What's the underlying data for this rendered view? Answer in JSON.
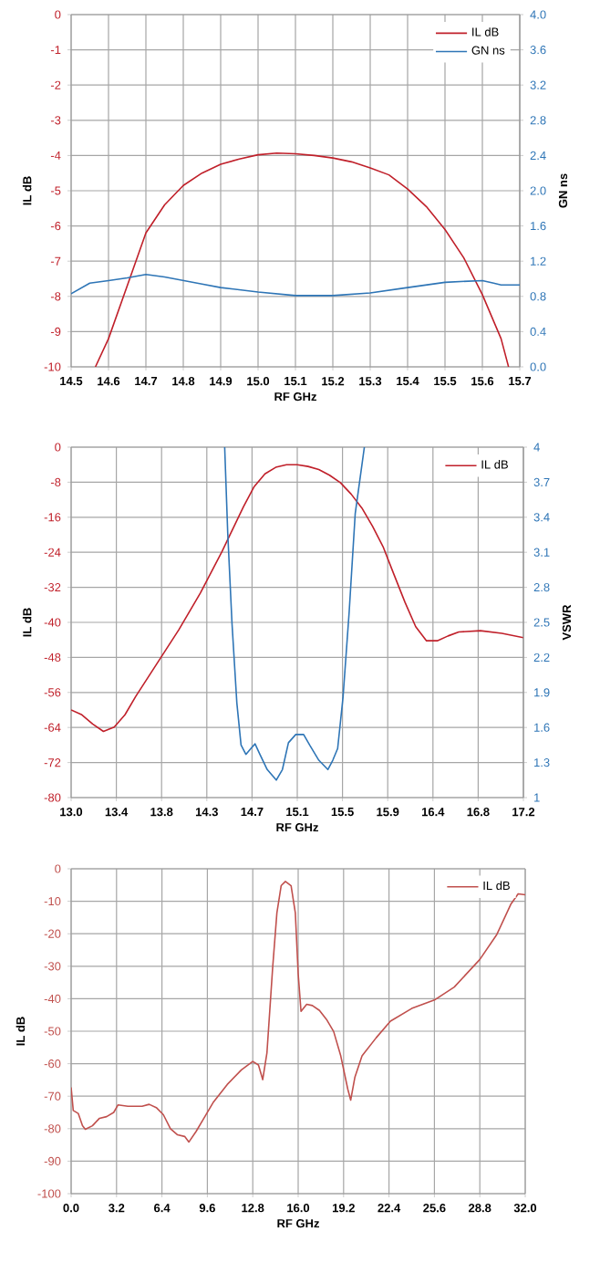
{
  "chart_data": [
    {
      "type": "line",
      "xlabel": "RF GHz",
      "ylabel": "IL dB",
      "y2label": "GN ns",
      "grid": true,
      "legend": "top right",
      "xlim": [
        14.5,
        15.7
      ],
      "xticks": [
        {
          "value": 14.5,
          "label": "14.5"
        },
        {
          "value": 14.6,
          "label": "14.6"
        },
        {
          "value": 14.7,
          "label": "14.7"
        },
        {
          "value": 14.8,
          "label": "14.8"
        },
        {
          "value": 14.9,
          "label": "14.9"
        },
        {
          "value": 15.0,
          "label": "15.0"
        },
        {
          "value": 15.1,
          "label": "15.1"
        },
        {
          "value": 15.2,
          "label": "15.2"
        },
        {
          "value": 15.3,
          "label": "15.3"
        },
        {
          "value": 15.4,
          "label": "15.4"
        },
        {
          "value": 15.5,
          "label": "15.5"
        },
        {
          "value": 15.6,
          "label": "15.6"
        },
        {
          "value": 15.7,
          "label": "15.7"
        }
      ],
      "ylim": [
        -10,
        0
      ],
      "yticks": [
        -10,
        -9,
        -8,
        -7,
        -6,
        -5,
        -4,
        -3,
        -2,
        -1,
        0
      ],
      "y2lim": [
        0,
        4
      ],
      "y2ticks": [
        {
          "value": 0,
          "label": "0.0"
        },
        {
          "value": 0.4,
          "label": "0.4"
        },
        {
          "value": 0.8,
          "label": "0.8"
        },
        {
          "value": 1.2,
          "label": "1.2"
        },
        {
          "value": 1.6,
          "label": "1.6"
        },
        {
          "value": 2.0,
          "label": "2.0"
        },
        {
          "value": 2.4,
          "label": "2.4"
        },
        {
          "value": 2.8,
          "label": "2.8"
        },
        {
          "value": 3.2,
          "label": "3.2"
        },
        {
          "value": 3.6,
          "label": "3.6"
        },
        {
          "value": 4.0,
          "label": "4.0"
        }
      ],
      "series": [
        {
          "name": "IL dB",
          "color": "#c0202a",
          "x": [
            14.565,
            14.6,
            14.65,
            14.7,
            14.75,
            14.8,
            14.85,
            14.9,
            14.95,
            15.0,
            15.05,
            15.1,
            15.15,
            15.2,
            15.25,
            15.3,
            15.35,
            15.4,
            15.45,
            15.5,
            15.55,
            15.6,
            15.65,
            15.67
          ],
          "values": [
            -10,
            -9.2,
            -7.7,
            -6.2,
            -5.4,
            -4.85,
            -4.5,
            -4.25,
            -4.1,
            -3.98,
            -3.93,
            -3.95,
            -4.0,
            -4.07,
            -4.18,
            -4.35,
            -4.55,
            -4.95,
            -5.45,
            -6.1,
            -6.9,
            -7.95,
            -9.2,
            -10
          ]
        },
        {
          "name": "GN ns",
          "color": "#2e75b6",
          "axis": "y2",
          "x": [
            14.5,
            14.55,
            14.6,
            14.65,
            14.7,
            14.75,
            14.8,
            14.85,
            14.9,
            15.0,
            15.1,
            15.2,
            15.3,
            15.4,
            15.5,
            15.6,
            15.63,
            15.65,
            15.7
          ],
          "values": [
            0.83,
            0.95,
            0.98,
            1.01,
            1.05,
            1.02,
            0.98,
            0.94,
            0.9,
            0.85,
            0.81,
            0.81,
            0.84,
            0.9,
            0.96,
            0.98,
            0.95,
            0.93,
            0.93
          ]
        }
      ]
    },
    {
      "type": "line",
      "xlabel": "RF GHz",
      "ylabel": "IL dB",
      "y2label": "VSWR",
      "grid": true,
      "legend": "top right",
      "xlim": [
        13.0,
        17.2
      ],
      "xticks": [
        {
          "value": 13.0,
          "label": "13.0"
        },
        {
          "value": 13.42,
          "label": "13.4"
        },
        {
          "value": 13.84,
          "label": "13.8"
        },
        {
          "value": 14.26,
          "label": "14.3"
        },
        {
          "value": 14.68,
          "label": "14.7"
        },
        {
          "value": 15.1,
          "label": "15.1"
        },
        {
          "value": 15.52,
          "label": "15.5"
        },
        {
          "value": 15.94,
          "label": "15.9"
        },
        {
          "value": 16.36,
          "label": "16.4"
        },
        {
          "value": 16.78,
          "label": "16.8"
        },
        {
          "value": 17.2,
          "label": "17.2"
        }
      ],
      "ylim": [
        -80,
        0
      ],
      "yticks": [
        -80,
        -72,
        -64,
        -56,
        -48,
        -40,
        -32,
        -24,
        -16,
        -8,
        0
      ],
      "y2lim": [
        1,
        4
      ],
      "y2ticks": [
        1,
        1.3,
        1.6,
        1.9,
        2.2,
        2.5,
        2.8,
        3.1,
        3.4,
        3.7,
        4
      ],
      "series": [
        {
          "name": "IL dB",
          "color": "#c0202a",
          "x": [
            13.0,
            13.1,
            13.2,
            13.3,
            13.4,
            13.5,
            13.6,
            13.8,
            14.0,
            14.2,
            14.4,
            14.6,
            14.7,
            14.8,
            14.9,
            15.0,
            15.1,
            15.2,
            15.3,
            15.4,
            15.5,
            15.6,
            15.7,
            15.8,
            15.9,
            16.0,
            16.1,
            16.2,
            16.3,
            16.4,
            16.5,
            16.6,
            16.8,
            17.0,
            17.2
          ],
          "values": [
            -60.0,
            -61.1,
            -63.2,
            -64.9,
            -63.9,
            -61.1,
            -56.9,
            -49.3,
            -41.7,
            -33.3,
            -23.9,
            -13.6,
            -9.0,
            -6.1,
            -4.6,
            -4.0,
            -4.0,
            -4.4,
            -5.1,
            -6.4,
            -8.1,
            -10.7,
            -13.9,
            -18.1,
            -22.9,
            -29.2,
            -35.4,
            -41.0,
            -44.2,
            -44.2,
            -43.1,
            -42.2,
            -41.9,
            -42.5,
            -43.5
          ]
        },
        {
          "color": "#2e75b6",
          "axis": "y2",
          "x": [
            14.426,
            14.454,
            14.494,
            14.539,
            14.578,
            14.623,
            14.669,
            14.708,
            14.753,
            14.821,
            14.905,
            14.962,
            15.018,
            15.086,
            15.159,
            15.215,
            15.3,
            15.384,
            15.43,
            15.475,
            15.525,
            15.582,
            15.638,
            15.723
          ],
          "values": [
            4.0,
            3.27,
            2.49,
            1.81,
            1.45,
            1.37,
            1.42,
            1.46,
            1.37,
            1.24,
            1.15,
            1.24,
            1.47,
            1.54,
            1.54,
            1.45,
            1.32,
            1.24,
            1.32,
            1.42,
            1.86,
            2.59,
            3.43,
            4.0
          ]
        }
      ]
    },
    {
      "type": "line",
      "xlabel": "RF GHz",
      "ylabel": "IL dB",
      "grid": true,
      "legend": "top right",
      "xlim": [
        0,
        32
      ],
      "xticks": [
        {
          "value": 0,
          "label": "0.0"
        },
        {
          "value": 3.2,
          "label": "3.2"
        },
        {
          "value": 6.4,
          "label": "6.4"
        },
        {
          "value": 9.6,
          "label": "9.6"
        },
        {
          "value": 12.8,
          "label": "12.8"
        },
        {
          "value": 16.0,
          "label": "16.0"
        },
        {
          "value": 19.2,
          "label": "19.2"
        },
        {
          "value": 22.4,
          "label": "22.4"
        },
        {
          "value": 25.6,
          "label": "25.6"
        },
        {
          "value": 28.8,
          "label": "28.8"
        },
        {
          "value": 32.0,
          "label": "32.0"
        }
      ],
      "ylim": [
        -100,
        0
      ],
      "yticks": [
        -100,
        -90,
        -80,
        -70,
        -60,
        -50,
        -40,
        -30,
        -20,
        -10,
        0
      ],
      "series": [
        {
          "name": "IL dB",
          "color": "#c0504d",
          "x": [
            0.0,
            0.15,
            0.5,
            0.8,
            1.0,
            1.5,
            2.0,
            2.5,
            3.0,
            3.3,
            4.0,
            5.0,
            5.5,
            6.0,
            6.5,
            7.0,
            7.5,
            8.0,
            8.3,
            8.8,
            9.3,
            10.0,
            11.0,
            12.0,
            12.8,
            13.2,
            13.5,
            13.8,
            14.2,
            14.5,
            14.8,
            15.1,
            15.5,
            15.8,
            16.0,
            16.2,
            16.6,
            17.0,
            17.5,
            18.0,
            18.5,
            19.0,
            19.5,
            19.7,
            20.0,
            20.5,
            21.5,
            22.5,
            24.0,
            25.6,
            27.0,
            28.8,
            30.0,
            31.0,
            31.5,
            32.0
          ],
          "values": [
            -67.3,
            -74.4,
            -75.3,
            -79.1,
            -80.2,
            -79.1,
            -76.8,
            -76.3,
            -75.0,
            -72.7,
            -73.1,
            -73.1,
            -72.5,
            -73.5,
            -75.7,
            -80.0,
            -81.9,
            -82.4,
            -84.1,
            -80.9,
            -77.2,
            -72.0,
            -66.4,
            -61.9,
            -59.3,
            -60.4,
            -64.9,
            -56.6,
            -30.5,
            -13.6,
            -5.2,
            -3.9,
            -5.2,
            -13.6,
            -32.3,
            -43.9,
            -41.7,
            -42.1,
            -43.6,
            -46.4,
            -50.1,
            -57.6,
            -67.9,
            -71.2,
            -64.1,
            -57.6,
            -52.0,
            -46.9,
            -43.0,
            -40.4,
            -36.4,
            -27.9,
            -20.2,
            -10.8,
            -7.7,
            -8.0
          ]
        }
      ]
    }
  ]
}
